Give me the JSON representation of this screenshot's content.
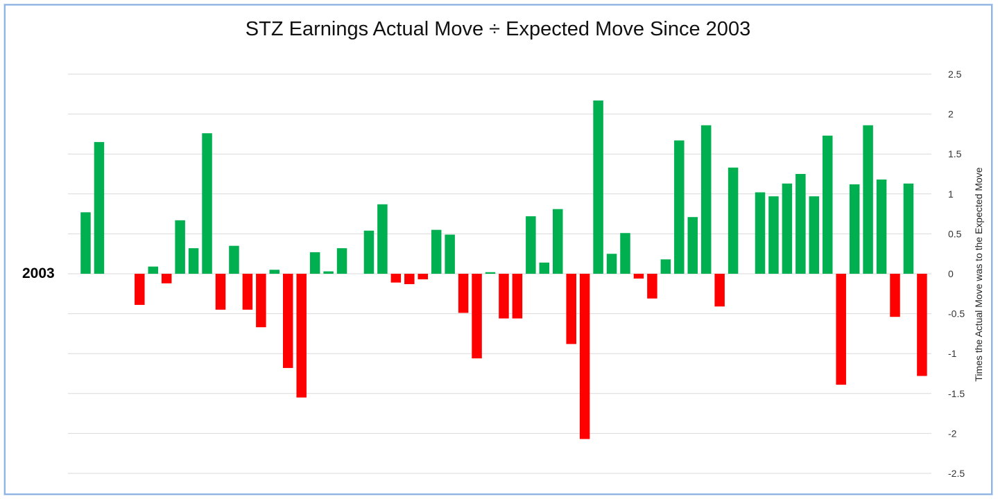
{
  "chart_data": {
    "type": "bar",
    "title": "STZ Earnings Actual Move ÷ Expected Move Since 2003",
    "ylabel": "Times the Actual Move was to the Expected Move",
    "start_label": "2003",
    "ylim": [
      -2.5,
      2.5
    ],
    "yticks": [
      2.5,
      2,
      1.5,
      1,
      0.5,
      0,
      -0.5,
      -1,
      -1.5,
      -2,
      -2.5
    ],
    "ytick_labels": [
      "2.5",
      "2",
      "1.5",
      "1",
      "0.5",
      "0",
      "-0.5",
      "-1",
      "-1.5",
      "-2",
      "-2.5"
    ],
    "grid": true,
    "y_axis_position": "right",
    "values": [
      0.77,
      1.65,
      null,
      null,
      -0.39,
      0.09,
      -0.12,
      0.67,
      0.32,
      1.76,
      -0.45,
      0.35,
      -0.45,
      -0.67,
      0.05,
      -1.18,
      -1.55,
      0.27,
      0.03,
      0.32,
      null,
      0.54,
      0.87,
      -0.11,
      -0.13,
      -0.07,
      0.55,
      0.49,
      -0.49,
      -1.06,
      0.02,
      -0.56,
      -0.56,
      0.72,
      0.14,
      0.81,
      -0.88,
      -2.07,
      2.17,
      0.25,
      0.51,
      -0.06,
      -0.31,
      0.18,
      1.67,
      0.71,
      1.86,
      -0.41,
      1.33,
      null,
      1.02,
      0.97,
      1.13,
      1.25,
      0.97,
      1.73,
      -1.39,
      1.12,
      1.86,
      1.18,
      -0.54,
      1.13,
      -1.28
    ],
    "colors": {
      "positive": "#00b050",
      "negative": "#ff0000",
      "grid": "#d9d9d9",
      "frame": "#8eb4e3"
    }
  }
}
